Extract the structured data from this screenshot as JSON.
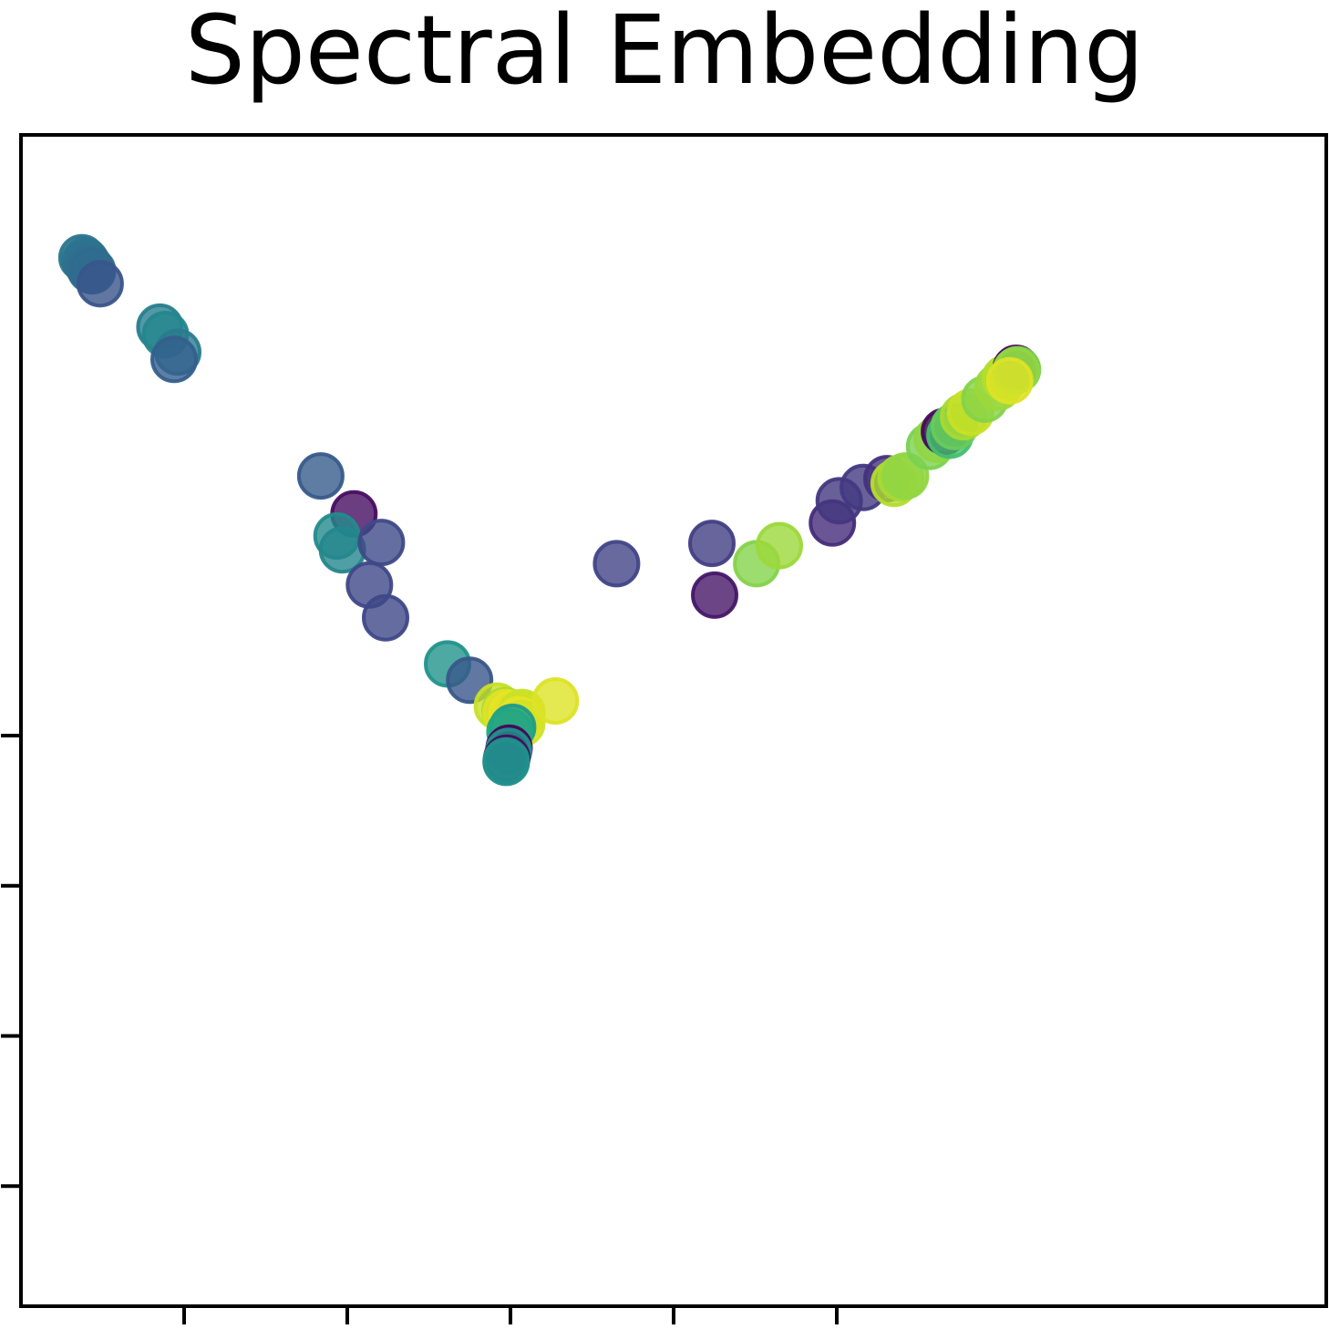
{
  "chart_data": {
    "type": "scatter",
    "title": "Spectral Embedding",
    "xlabel": "",
    "ylabel": "",
    "xlim": [
      -1.0,
      1.0
    ],
    "ylim": [
      -0.95,
      1.0
    ],
    "xticks": [
      -0.75,
      -0.5,
      -0.25,
      0.0,
      0.25
    ],
    "yticks": [
      -0.75,
      -0.5,
      -0.25,
      0.0
    ],
    "tick_labels_shown": false,
    "grid": false,
    "colormap": "viridis",
    "marker_alpha": 0.8,
    "points": [
      {
        "x": -0.9066,
        "y": 0.7954,
        "c": 0.49
      },
      {
        "x": -0.9017,
        "y": 0.7908,
        "c": 0.48
      },
      {
        "x": -0.8989,
        "y": 0.7862,
        "c": 0.47
      },
      {
        "x": -0.8953,
        "y": 0.78,
        "c": 0.46
      },
      {
        "x": -0.8932,
        "y": 0.7754,
        "c": 0.45
      },
      {
        "x": -0.8904,
        "y": 0.7738,
        "c": 0.44
      },
      {
        "x": -0.8786,
        "y": 0.7523,
        "c": 0.33
      },
      {
        "x": -0.7871,
        "y": 0.68,
        "c": 0.53
      },
      {
        "x": -0.7787,
        "y": 0.6677,
        "c": 0.58
      },
      {
        "x": -0.7598,
        "y": 0.6385,
        "c": 0.52
      },
      {
        "x": -0.7654,
        "y": 0.6262,
        "c": 0.38
      },
      {
        "x": -0.5407,
        "y": 0.4323,
        "c": 0.36
      },
      {
        "x": -0.4898,
        "y": 0.3692,
        "c": 0.05
      },
      {
        "x": -0.5158,
        "y": 0.3323,
        "c": 0.6
      },
      {
        "x": -0.5074,
        "y": 0.3092,
        "c": 0.58
      },
      {
        "x": -0.4478,
        "y": 0.3215,
        "c": 0.28
      },
      {
        "x": -0.4661,
        "y": 0.2508,
        "c": 0.27
      },
      {
        "x": -0.4414,
        "y": 0.1962,
        "c": 0.27
      },
      {
        "x": -0.3463,
        "y": 0.1192,
        "c": 0.64
      },
      {
        "x": -0.3126,
        "y": 0.0923,
        "c": 0.34
      },
      {
        "x": -0.2701,
        "y": 0.0492,
        "c": 0.95
      },
      {
        "x": -0.2583,
        "y": 0.0415,
        "c": 0.92
      },
      {
        "x": -0.2569,
        "y": 0.0385,
        "c": 0.97
      },
      {
        "x": -0.2479,
        "y": 0.0369,
        "c": 0.98
      },
      {
        "x": -0.2375,
        "y": 0.0354,
        "c": 0.97
      },
      {
        "x": -0.2322,
        "y": 0.0385,
        "c": 0.95
      },
      {
        "x": -0.2368,
        "y": 0.0262,
        "c": 0.98
      },
      {
        "x": -0.2327,
        "y": 0.02,
        "c": 0.96
      },
      {
        "x": -0.2466,
        "y": 0.0138,
        "c": 0.68
      },
      {
        "x": -0.2508,
        "y": 0.0062,
        "c": 0.74
      },
      {
        "x": -0.2521,
        "y": -0.0208,
        "c": 0.02
      },
      {
        "x": -0.2529,
        "y": -0.0262,
        "c": 0.62
      },
      {
        "x": -0.2556,
        "y": -0.0377,
        "c": 0.04
      },
      {
        "x": -0.2565,
        "y": -0.0423,
        "c": 0.63
      },
      {
        "x": -0.2565,
        "y": -0.0446,
        "c": 0.62
      },
      {
        "x": -0.1811,
        "y": 0.0577,
        "c": 0.97
      },
      {
        "x": -0.0875,
        "y": 0.2862,
        "c": 0.25
      },
      {
        "x": 0.0586,
        "y": 0.32,
        "c": 0.23
      },
      {
        "x": 0.0628,
        "y": 0.2338,
        "c": 0.08
      },
      {
        "x": 0.1272,
        "y": 0.2862,
        "c": 0.89
      },
      {
        "x": 0.162,
        "y": 0.3162,
        "c": 0.91
      },
      {
        "x": 0.2433,
        "y": 0.3538,
        "c": 0.16
      },
      {
        "x": 0.2538,
        "y": 0.3908,
        "c": 0.2
      },
      {
        "x": 0.2907,
        "y": 0.4131,
        "c": 0.21
      },
      {
        "x": 0.3268,
        "y": 0.4277,
        "c": 0.18
      },
      {
        "x": 0.3379,
        "y": 0.42,
        "c": 0.93
      },
      {
        "x": 0.3484,
        "y": 0.4292,
        "c": 0.92
      },
      {
        "x": 0.3553,
        "y": 0.4323,
        "c": 0.9
      },
      {
        "x": 0.3922,
        "y": 0.4815,
        "c": 0.88
      },
      {
        "x": 0.4038,
        "y": 0.4931,
        "c": 0.9
      },
      {
        "x": 0.4149,
        "y": 0.5062,
        "c": 0.04
      },
      {
        "x": 0.4233,
        "y": 0.5,
        "c": 0.82
      },
      {
        "x": 0.4302,
        "y": 0.5146,
        "c": 0.86
      },
      {
        "x": 0.4441,
        "y": 0.5308,
        "c": 0.92
      },
      {
        "x": 0.4552,
        "y": 0.5385,
        "c": 0.95
      },
      {
        "x": 0.4768,
        "y": 0.56,
        "c": 0.89
      },
      {
        "x": 0.4971,
        "y": 0.58,
        "c": 0.91
      },
      {
        "x": 0.5081,
        "y": 0.5946,
        "c": 0.93
      },
      {
        "x": 0.5249,
        "y": 0.6115,
        "c": 0.02
      },
      {
        "x": 0.527,
        "y": 0.6092,
        "c": 0.88
      },
      {
        "x": 0.5249,
        "y": 0.6077,
        "c": 0.9
      },
      {
        "x": 0.5151,
        "y": 0.5908,
        "c": 0.97
      }
    ]
  }
}
